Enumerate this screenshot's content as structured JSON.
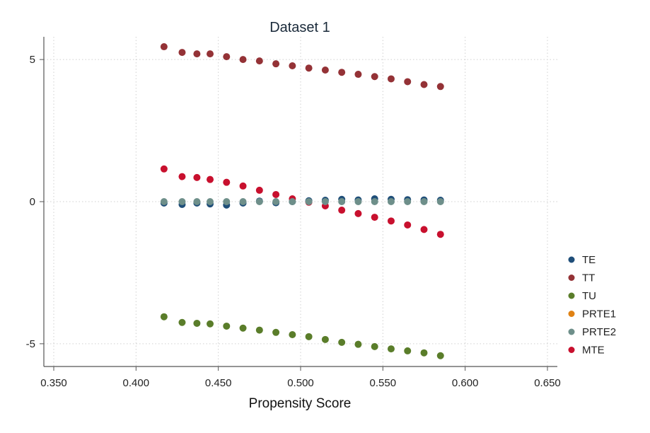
{
  "chart_data": {
    "type": "scatter",
    "title": "Dataset 1",
    "xlabel": "Propensity Score",
    "ylabel": "",
    "xlim": [
      0.35,
      0.65
    ],
    "ylim": [
      -5.8,
      5.8
    ],
    "x_ticks": [
      0.35,
      0.4,
      0.45,
      0.5,
      0.55,
      0.6,
      0.65
    ],
    "x_tick_labels": [
      "0.350",
      "0.400",
      "0.450",
      "0.500",
      "0.550",
      "0.600",
      "0.650"
    ],
    "y_ticks": [
      -5,
      0,
      5
    ],
    "y_tick_labels": [
      "-5",
      "0",
      "5"
    ],
    "grid": true,
    "legend_position": "right",
    "series": [
      {
        "name": "TE",
        "color": "#1f4e79",
        "x": [
          0.417,
          0.428,
          0.437,
          0.445,
          0.455,
          0.465,
          0.475,
          0.485,
          0.495,
          0.505,
          0.515,
          0.525,
          0.535,
          0.545,
          0.555,
          0.565,
          0.575,
          0.585
        ],
        "y": [
          -0.05,
          -0.1,
          -0.05,
          -0.08,
          -0.12,
          -0.05,
          0.02,
          -0.04,
          0.0,
          0.03,
          0.05,
          0.08,
          0.06,
          0.1,
          0.08,
          0.07,
          0.06,
          0.05
        ]
      },
      {
        "name": "TT",
        "color": "#943236",
        "x": [
          0.417,
          0.428,
          0.437,
          0.445,
          0.455,
          0.465,
          0.475,
          0.485,
          0.495,
          0.505,
          0.515,
          0.525,
          0.535,
          0.545,
          0.555,
          0.565,
          0.575,
          0.585
        ],
        "y": [
          5.45,
          5.25,
          5.2,
          5.2,
          5.1,
          5.0,
          4.95,
          4.85,
          4.78,
          4.7,
          4.63,
          4.55,
          4.48,
          4.4,
          4.32,
          4.22,
          4.12,
          4.05
        ]
      },
      {
        "name": "TU",
        "color": "#5a7d2a",
        "x": [
          0.417,
          0.428,
          0.437,
          0.445,
          0.455,
          0.465,
          0.475,
          0.485,
          0.495,
          0.505,
          0.515,
          0.525,
          0.535,
          0.545,
          0.555,
          0.565,
          0.575,
          0.585
        ],
        "y": [
          -4.05,
          -4.25,
          -4.28,
          -4.3,
          -4.38,
          -4.45,
          -4.52,
          -4.6,
          -4.68,
          -4.75,
          -4.85,
          -4.95,
          -5.02,
          -5.1,
          -5.18,
          -5.25,
          -5.32,
          -5.42
        ]
      },
      {
        "name": "PRTE1",
        "color": "#e08214",
        "x": [],
        "y": []
      },
      {
        "name": "PRTE2",
        "color": "#6e8f8a",
        "x": [
          0.417,
          0.428,
          0.437,
          0.445,
          0.455,
          0.465,
          0.475,
          0.485,
          0.495,
          0.505,
          0.515,
          0.525,
          0.535,
          0.545,
          0.555,
          0.565,
          0.575,
          0.585
        ],
        "y": [
          0.0,
          0.0,
          0.0,
          0.0,
          0.0,
          0.0,
          0.0,
          0.0,
          0.0,
          0.0,
          0.0,
          0.0,
          0.0,
          0.0,
          0.0,
          0.0,
          0.0,
          0.0
        ]
      },
      {
        "name": "MTE",
        "color": "#c8102e",
        "x": [
          0.417,
          0.428,
          0.437,
          0.445,
          0.455,
          0.465,
          0.475,
          0.485,
          0.495,
          0.505,
          0.515,
          0.525,
          0.535,
          0.545,
          0.555,
          0.565,
          0.575,
          0.585
        ],
        "y": [
          1.15,
          0.88,
          0.85,
          0.78,
          0.68,
          0.55,
          0.4,
          0.25,
          0.1,
          -0.02,
          -0.15,
          -0.3,
          -0.42,
          -0.55,
          -0.68,
          -0.82,
          -0.98,
          -1.15
        ]
      }
    ]
  }
}
